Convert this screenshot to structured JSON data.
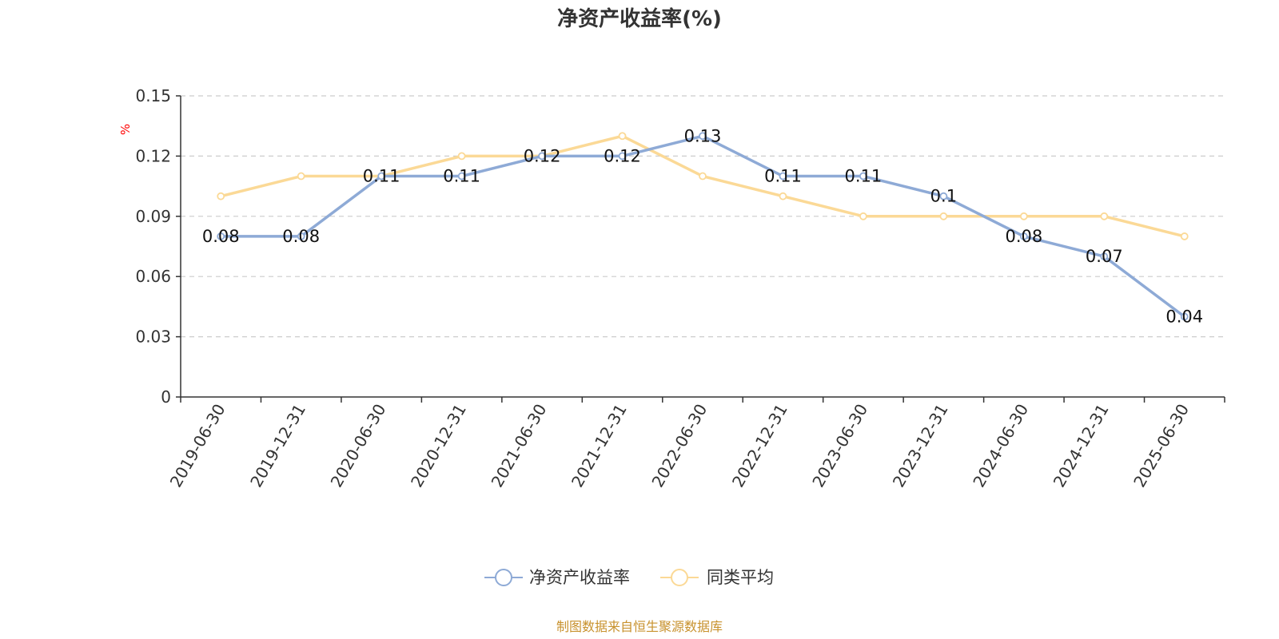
{
  "chart_data": {
    "type": "line",
    "title": "净资产收益率(%)",
    "ylabel": "%",
    "ylim": [
      0,
      0.15
    ],
    "yticks": [
      "0",
      "0.03",
      "0.06",
      "0.09",
      "0.12",
      "0.15"
    ],
    "categories": [
      "2019-06-30",
      "2019-12-31",
      "2020-06-30",
      "2020-12-31",
      "2021-06-30",
      "2021-12-31",
      "2022-06-30",
      "2022-12-31",
      "2023-06-30",
      "2023-12-31",
      "2024-06-30",
      "2024-12-31",
      "2025-06-30"
    ],
    "series": [
      {
        "name": "净资产收益率",
        "color": "#8eaad6",
        "show_labels": true,
        "values": [
          0.08,
          0.08,
          0.11,
          0.11,
          0.12,
          0.12,
          0.13,
          0.11,
          0.11,
          0.1,
          0.08,
          0.07,
          0.04
        ],
        "labels": [
          "0.08",
          "0.08",
          "0.11",
          "0.11",
          "0.12",
          "0.12",
          "0.13",
          "0.11",
          "0.11",
          "0.1",
          "0.08",
          "0.07",
          "0.04"
        ]
      },
      {
        "name": "同类平均",
        "color": "#fbd996",
        "show_labels": false,
        "values": [
          0.1,
          0.11,
          0.11,
          0.12,
          0.12,
          0.13,
          0.11,
          0.1,
          0.09,
          0.09,
          0.09,
          0.09,
          0.08
        ]
      }
    ],
    "grid": true,
    "legend": "bottom-center"
  },
  "footer": {
    "source": "制图数据来自恒生聚源数据库"
  }
}
